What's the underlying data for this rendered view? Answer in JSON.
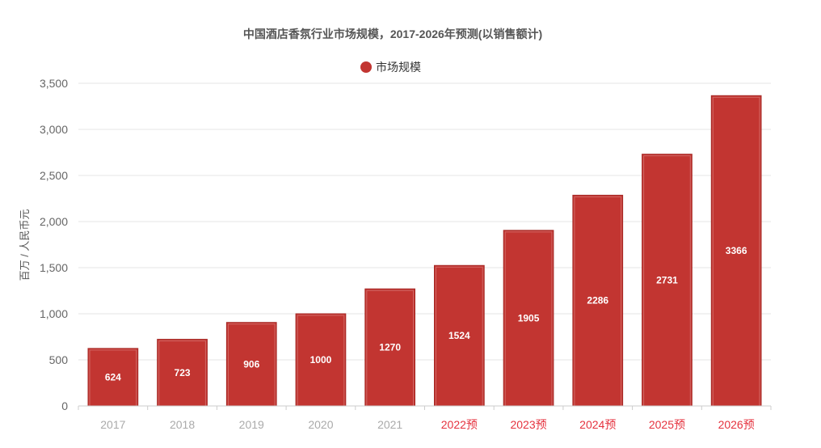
{
  "chart_data": {
    "type": "bar",
    "title": "中国酒店香氛行业市场规模，2017-2026年预测(以销售额计)",
    "ylabel": "百万 / 人民币元",
    "xlabel": "",
    "legend": {
      "label": "市场规模",
      "position": "top-center"
    },
    "categories": [
      "2017",
      "2018",
      "2019",
      "2020",
      "2021",
      "2022预",
      "2023预",
      "2024预",
      "2025预",
      "2026预"
    ],
    "forecast_flags": [
      false,
      false,
      false,
      false,
      false,
      true,
      true,
      true,
      true,
      true
    ],
    "values": [
      624,
      723,
      906,
      1000,
      1270,
      1524,
      1905,
      2286,
      2731,
      3366
    ],
    "data_labels": [
      "624",
      "723",
      "906",
      "1000",
      "1270",
      "1524",
      "1905",
      "2286",
      "2731",
      "3366"
    ],
    "ylim": [
      0,
      3500
    ],
    "yticks": [
      0,
      500,
      1000,
      1500,
      2000,
      2500,
      3000,
      3500
    ],
    "ytick_labels": [
      "0",
      "500",
      "1,000",
      "1,500",
      "2,000",
      "2,500",
      "3,000",
      "3,500"
    ],
    "grid": true,
    "colors": {
      "bar": "#c23531",
      "bar_border": "#a52a26",
      "historic_tick": "#aaaaaa",
      "forecast_tick": "#e5323e"
    }
  }
}
